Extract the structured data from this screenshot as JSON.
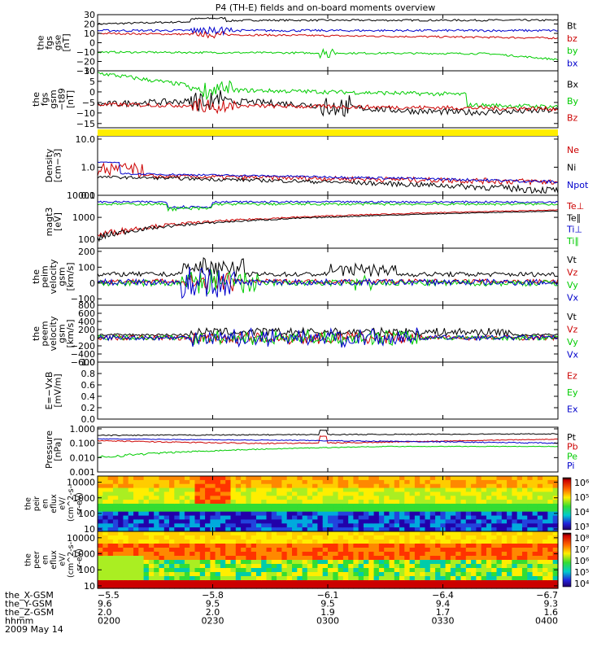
{
  "title": "P4 (TH-E) fields and on-board moments overview",
  "panels": [
    {
      "id": "fgs-gse",
      "ylabel": [
        "the",
        "fgs",
        "gse",
        "[nT]"
      ],
      "ymin": -30,
      "ymax": 30,
      "log": false,
      "ticks": [
        "30",
        "20",
        "10",
        "0",
        "−10",
        "−20",
        "−30"
      ],
      "tick_values": [
        30,
        20,
        10,
        0,
        -10,
        -20,
        -30
      ],
      "legend": [
        {
          "label": "Bt",
          "color": "#000000"
        },
        {
          "label": "bz",
          "color": "#cc0000"
        },
        {
          "label": "by",
          "color": "#00cc00"
        },
        {
          "label": "bx",
          "color": "#0000cc"
        }
      ]
    },
    {
      "id": "fgs-gsm",
      "ylabel": [
        "the",
        "fgs",
        "gsm",
        "−t89",
        "[nT]"
      ],
      "ymin": -17,
      "ymax": 10,
      "log": false,
      "ticks": [
        "10",
        "5",
        "0",
        "−5",
        "−10",
        "−15"
      ],
      "tick_values": [
        10,
        5,
        0,
        -5,
        -10,
        -15
      ],
      "legend": [
        {
          "label": "Bx",
          "color": "#000000"
        },
        {
          "label": "By",
          "color": "#00cc00"
        },
        {
          "label": "Bz",
          "color": "#cc0000"
        }
      ]
    },
    {
      "id": "density",
      "ylabel": [
        "Density",
        "[cm−3]"
      ],
      "ymin": 0.1,
      "ymax": 13,
      "log": true,
      "ticks": [
        "10.0",
        "1.0",
        "0.1"
      ],
      "tick_values": [
        10,
        1,
        0.1
      ],
      "legend": [
        {
          "label": "Ne",
          "color": "#cc0000"
        },
        {
          "label": "Ni",
          "color": "#000000"
        },
        {
          "label": "Npot",
          "color": "#0000cc"
        }
      ]
    },
    {
      "id": "temperature",
      "ylabel": [
        "magt3",
        "[eV]"
      ],
      "ymin": 40,
      "ymax": 10000,
      "log": true,
      "ticks": [
        "10000",
        "1000",
        "100"
      ],
      "tick_values": [
        10000,
        1000,
        100
      ],
      "legend": [
        {
          "label": "Te⊥",
          "color": "#cc0000"
        },
        {
          "label": "Te∥",
          "color": "#000000"
        },
        {
          "label": "Ti⊥",
          "color": "#0000cc"
        },
        {
          "label": "Ti∥",
          "color": "#00cc00"
        }
      ]
    },
    {
      "id": "peim-velocity",
      "ylabel": [
        "the",
        "peim",
        "velocity",
        "gsm",
        "[km/s]"
      ],
      "ymin": -140,
      "ymax": 220,
      "log": false,
      "ticks": [
        "200",
        "100",
        "0",
        "−100"
      ],
      "tick_values": [
        200,
        100,
        0,
        -100
      ],
      "legend": [
        {
          "label": "Vt",
          "color": "#000000"
        },
        {
          "label": "Vz",
          "color": "#cc0000"
        },
        {
          "label": "Vy",
          "color": "#00cc00"
        },
        {
          "label": "Vx",
          "color": "#0000cc"
        }
      ]
    },
    {
      "id": "peem-velocity",
      "ylabel": [
        "the",
        "peem",
        "velocity",
        "gsm",
        "[km/s]"
      ],
      "ymin": -600,
      "ymax": 800,
      "log": false,
      "ticks": [
        "800",
        "600",
        "400",
        "200",
        "0",
        "−200",
        "−400",
        "−600"
      ],
      "tick_values": [
        800,
        600,
        400,
        200,
        0,
        -200,
        -400,
        -600
      ],
      "legend": [
        {
          "label": "Vt",
          "color": "#000000"
        },
        {
          "label": "Vz",
          "color": "#cc0000"
        },
        {
          "label": "Vy",
          "color": "#00cc00"
        },
        {
          "label": "Vx",
          "color": "#0000cc"
        }
      ]
    },
    {
      "id": "efield",
      "ylabel": [
        "E=−VxB",
        "[mV/m]"
      ],
      "ymin": 0,
      "ymax": 1,
      "log": false,
      "ticks": [
        "1.0",
        "0.8",
        "0.6",
        "0.4",
        "0.2",
        "0.0"
      ],
      "tick_values": [
        1,
        0.8,
        0.6,
        0.4,
        0.2,
        0
      ],
      "legend": [
        {
          "label": "Ez",
          "color": "#cc0000"
        },
        {
          "label": "Ey",
          "color": "#00cc00"
        },
        {
          "label": "Ex",
          "color": "#0000cc"
        }
      ]
    },
    {
      "id": "pressure",
      "ylabel": [
        "Pressure",
        "[nPa]"
      ],
      "ymin": 0.001,
      "ymax": 1.3,
      "log": true,
      "ticks": [
        "1.000",
        "0.100",
        "0.010",
        "0.001"
      ],
      "tick_values": [
        1,
        0.1,
        0.01,
        0.001
      ],
      "legend": [
        {
          "label": "Pt",
          "color": "#000000"
        },
        {
          "label": "Pb",
          "color": "#cc0000"
        },
        {
          "label": "Pe",
          "color": "#00cc00"
        },
        {
          "label": "Pi",
          "color": "#0000cc"
        }
      ]
    },
    {
      "id": "peir-eflux",
      "ylabel": [
        "the",
        "peir",
        "en",
        "eflux",
        "eV/",
        "(cm^2-s-",
        "sr-eV)"
      ],
      "ymin": 7,
      "ymax": 25000,
      "log": true,
      "ticks": [
        "10000",
        "1000",
        "100",
        "10"
      ],
      "tick_values": [
        10000,
        1000,
        100,
        10
      ],
      "colorbar": [
        "10⁶",
        "10⁵",
        "10⁴",
        "10³"
      ]
    },
    {
      "id": "peer-eflux",
      "ylabel": [
        "the",
        "peer",
        "en",
        "eflux",
        "eV/",
        "(cm^2-s-",
        "sr-eV)"
      ],
      "ymin": 7,
      "ymax": 25000,
      "log": true,
      "ticks": [
        "10000",
        "1000",
        "100",
        "10"
      ],
      "tick_values": [
        10000,
        1000,
        100,
        10
      ],
      "colorbar": [
        "10⁸",
        "10⁷",
        "10⁶",
        "10⁵",
        "10⁴"
      ]
    }
  ],
  "xaxis_rows": [
    {
      "label": "the_X-GSM",
      "values": [
        "−5.5",
        "−5.8",
        "−6.1",
        "−6.4",
        "−6.7"
      ]
    },
    {
      "label": "the_Y-GSM",
      "values": [
        "9.6",
        "9.5",
        "9.5",
        "9.4",
        "9.3"
      ]
    },
    {
      "label": "the_Z-GSM",
      "values": [
        "2.0",
        "2.0",
        "1.9",
        "1.7",
        "1.6"
      ]
    },
    {
      "label": "hhmm",
      "values": [
        "0200",
        "0230",
        "0300",
        "0330",
        "0400"
      ]
    }
  ],
  "date": "2009 May 14",
  "chart_data": {
    "type": "line",
    "title": "P4 (TH-E) fields and on-board moments overview",
    "x": [
      "0200",
      "0230",
      "0300",
      "0330",
      "0400"
    ],
    "xlabel": "hhmm",
    "series": [
      {
        "name": "Bt",
        "values": [
          20,
          24,
          23,
          24,
          25
        ]
      },
      {
        "name": "bz",
        "values": [
          10,
          8,
          6,
          6,
          5
        ]
      },
      {
        "name": "by",
        "values": [
          -10,
          -11,
          -10,
          -12,
          -18
        ]
      },
      {
        "name": "bx",
        "values": [
          13,
          14,
          10,
          12,
          13
        ]
      },
      {
        "name": "Ni",
        "values": [
          0.4,
          0.35,
          0.25,
          0.18,
          0.18
        ]
      },
      {
        "name": "Ne",
        "values": [
          0.9,
          0.45,
          0.3,
          0.35,
          0.4
        ]
      },
      {
        "name": "Npot",
        "values": [
          1.5,
          0.55,
          0.4,
          0.35,
          0.3
        ]
      },
      {
        "name": "Ti∥",
        "values": [
          4000,
          3000,
          3500,
          4500,
          4000
        ]
      },
      {
        "name": "Te∥",
        "values": [
          150,
          600,
          800,
          1200,
          1500
        ]
      },
      {
        "name": "Pt",
        "values": [
          0.4,
          0.4,
          0.5,
          0.4,
          0.35
        ]
      },
      {
        "name": "Pb",
        "values": [
          0.15,
          0.12,
          0.1,
          0.15,
          0.2
        ]
      },
      {
        "name": "Pe",
        "values": [
          0.012,
          0.03,
          0.05,
          0.05,
          0.04
        ]
      },
      {
        "name": "Pi",
        "values": [
          0.2,
          0.15,
          0.12,
          0.1,
          0.08
        ]
      }
    ]
  }
}
